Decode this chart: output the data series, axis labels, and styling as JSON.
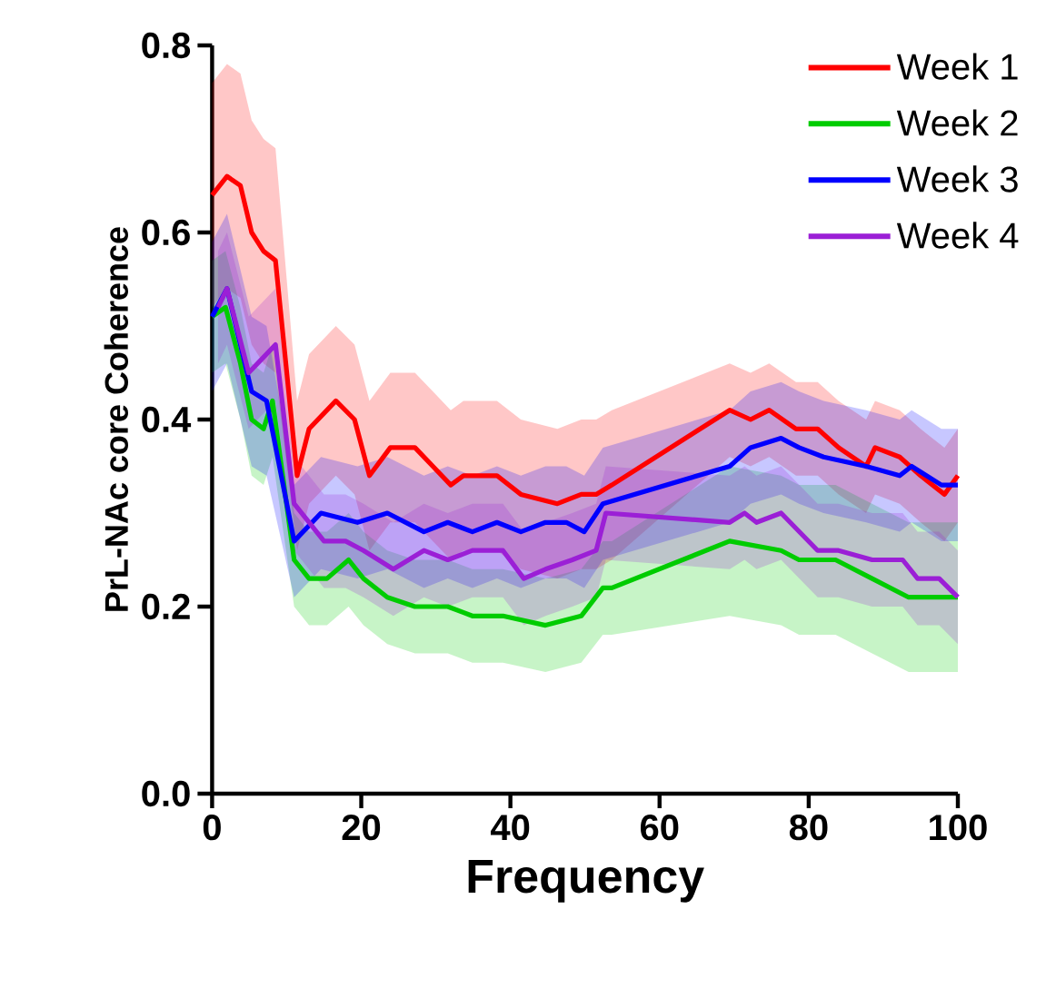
{
  "chart_data": {
    "type": "line",
    "xlabel": "Frequency",
    "ylabel": "PrL-NAc core Coherence",
    "xlim": [
      0,
      100
    ],
    "xticks": [
      0,
      20,
      40,
      60,
      80,
      100
    ],
    "ylim": [
      0,
      0.8
    ],
    "yticks": [
      {
        "value": 0,
        "label": "0.0"
      },
      0.2,
      0.4,
      0.6,
      0.8
    ],
    "grid": false,
    "legend": "top right",
    "line_style": "solid",
    "series": [
      {
        "name": "Week 1",
        "color": "#ff0000",
        "x": [
          0,
          2,
          3.8,
          5.3,
          6.9,
          8.5,
          11.4,
          13,
          16.6,
          19.1,
          21.1,
          23.9,
          27.2,
          29.6,
          32,
          33.7,
          35.7,
          38.2,
          41.4,
          46.3,
          49.5,
          51.5,
          53.6,
          69.4,
          72.2,
          74.7,
          78.3,
          81.2,
          84,
          87.7,
          88.9,
          92.2,
          95,
          98.2,
          100
        ],
        "values": [
          0.64,
          0.66,
          0.65,
          0.6,
          0.58,
          0.57,
          0.34,
          0.39,
          0.42,
          0.4,
          0.34,
          0.37,
          0.37,
          0.35,
          0.33,
          0.34,
          0.34,
          0.34,
          0.32,
          0.31,
          0.32,
          0.32,
          0.33,
          0.41,
          0.4,
          0.41,
          0.39,
          0.39,
          0.37,
          0.35,
          0.37,
          0.36,
          0.34,
          0.32,
          0.34
        ],
        "lower": [
          0.52,
          0.54,
          0.53,
          0.48,
          0.46,
          0.45,
          0.26,
          0.31,
          0.34,
          0.32,
          0.26,
          0.29,
          0.29,
          0.27,
          0.25,
          0.26,
          0.26,
          0.26,
          0.24,
          0.23,
          0.24,
          0.24,
          0.25,
          0.36,
          0.35,
          0.36,
          0.34,
          0.34,
          0.32,
          0.3,
          0.32,
          0.31,
          0.29,
          0.27,
          0.29
        ],
        "upper": [
          0.76,
          0.78,
          0.77,
          0.72,
          0.7,
          0.69,
          0.42,
          0.47,
          0.5,
          0.48,
          0.42,
          0.45,
          0.45,
          0.43,
          0.41,
          0.42,
          0.42,
          0.42,
          0.4,
          0.39,
          0.4,
          0.4,
          0.41,
          0.46,
          0.45,
          0.46,
          0.44,
          0.44,
          0.42,
          0.4,
          0.42,
          0.41,
          0.39,
          0.37,
          0.39
        ]
      },
      {
        "name": "Week 2",
        "color": "#00cc00",
        "x": [
          0,
          1.8,
          3.8,
          5.3,
          6.9,
          8.1,
          11,
          13,
          15.4,
          18.3,
          20.3,
          23.5,
          27.2,
          31.6,
          34.9,
          36.5,
          39,
          44.7,
          49.5,
          52.4,
          53.6,
          69.4,
          76.3,
          78.7,
          83.6,
          88.5,
          93.4,
          97.5,
          100
        ],
        "values": [
          0.51,
          0.52,
          0.46,
          0.4,
          0.39,
          0.42,
          0.25,
          0.23,
          0.23,
          0.25,
          0.23,
          0.21,
          0.2,
          0.2,
          0.19,
          0.19,
          0.19,
          0.18,
          0.19,
          0.22,
          0.22,
          0.27,
          0.26,
          0.25,
          0.25,
          0.23,
          0.21,
          0.21,
          0.21
        ],
        "lower": [
          0.45,
          0.46,
          0.4,
          0.34,
          0.33,
          0.36,
          0.2,
          0.18,
          0.18,
          0.2,
          0.18,
          0.16,
          0.15,
          0.15,
          0.14,
          0.14,
          0.14,
          0.13,
          0.14,
          0.17,
          0.17,
          0.19,
          0.18,
          0.17,
          0.17,
          0.15,
          0.13,
          0.13,
          0.13
        ],
        "upper": [
          0.57,
          0.58,
          0.52,
          0.46,
          0.45,
          0.48,
          0.3,
          0.28,
          0.28,
          0.3,
          0.28,
          0.26,
          0.25,
          0.25,
          0.24,
          0.24,
          0.24,
          0.23,
          0.24,
          0.27,
          0.27,
          0.35,
          0.34,
          0.33,
          0.33,
          0.31,
          0.29,
          0.29,
          0.29
        ]
      },
      {
        "name": "Week 3",
        "color": "#0000ff",
        "x": [
          0,
          2,
          5.3,
          7.3,
          11,
          14.6,
          19.5,
          23.5,
          28.4,
          31.6,
          34.9,
          38.2,
          41.4,
          44.7,
          47.5,
          49.9,
          52.4,
          69.4,
          72.2,
          76.3,
          78.7,
          82,
          87.7,
          92.2,
          93.8,
          97.8,
          100
        ],
        "values": [
          0.51,
          0.54,
          0.43,
          0.42,
          0.27,
          0.3,
          0.29,
          0.3,
          0.28,
          0.29,
          0.28,
          0.29,
          0.28,
          0.29,
          0.29,
          0.28,
          0.31,
          0.35,
          0.37,
          0.38,
          0.37,
          0.36,
          0.35,
          0.34,
          0.35,
          0.33,
          0.33
        ],
        "lower": [
          0.43,
          0.46,
          0.35,
          0.34,
          0.21,
          0.24,
          0.23,
          0.24,
          0.22,
          0.23,
          0.22,
          0.23,
          0.22,
          0.23,
          0.23,
          0.22,
          0.25,
          0.29,
          0.31,
          0.32,
          0.31,
          0.3,
          0.29,
          0.28,
          0.29,
          0.27,
          0.27
        ],
        "upper": [
          0.59,
          0.62,
          0.51,
          0.5,
          0.33,
          0.36,
          0.35,
          0.36,
          0.34,
          0.35,
          0.34,
          0.35,
          0.34,
          0.35,
          0.35,
          0.34,
          0.37,
          0.41,
          0.43,
          0.44,
          0.43,
          0.42,
          0.41,
          0.4,
          0.41,
          0.39,
          0.39
        ]
      },
      {
        "name": "Week 4",
        "color": "#9b1fd6",
        "x": [
          0.8,
          2,
          4.9,
          8.5,
          11,
          15,
          17.9,
          20.3,
          24.3,
          28.4,
          31.6,
          34.9,
          39,
          41.8,
          44.7,
          48.3,
          51.5,
          52.8,
          69.4,
          71.4,
          73,
          76.3,
          81.2,
          84,
          88.5,
          92.6,
          94.6,
          97.5,
          100
        ],
        "values": [
          0.52,
          0.54,
          0.45,
          0.48,
          0.31,
          0.27,
          0.27,
          0.26,
          0.24,
          0.26,
          0.25,
          0.26,
          0.26,
          0.23,
          0.24,
          0.25,
          0.26,
          0.3,
          0.29,
          0.3,
          0.29,
          0.3,
          0.26,
          0.26,
          0.25,
          0.25,
          0.23,
          0.23,
          0.21
        ],
        "lower": [
          0.46,
          0.48,
          0.39,
          0.42,
          0.26,
          0.22,
          0.22,
          0.21,
          0.19,
          0.21,
          0.2,
          0.21,
          0.21,
          0.18,
          0.19,
          0.2,
          0.21,
          0.25,
          0.24,
          0.25,
          0.24,
          0.25,
          0.21,
          0.21,
          0.2,
          0.2,
          0.18,
          0.18,
          0.16
        ],
        "upper": [
          0.58,
          0.6,
          0.51,
          0.54,
          0.36,
          0.32,
          0.32,
          0.31,
          0.29,
          0.31,
          0.3,
          0.31,
          0.31,
          0.28,
          0.29,
          0.3,
          0.31,
          0.35,
          0.34,
          0.35,
          0.34,
          0.35,
          0.31,
          0.31,
          0.3,
          0.3,
          0.28,
          0.28,
          0.26
        ]
      }
    ]
  }
}
